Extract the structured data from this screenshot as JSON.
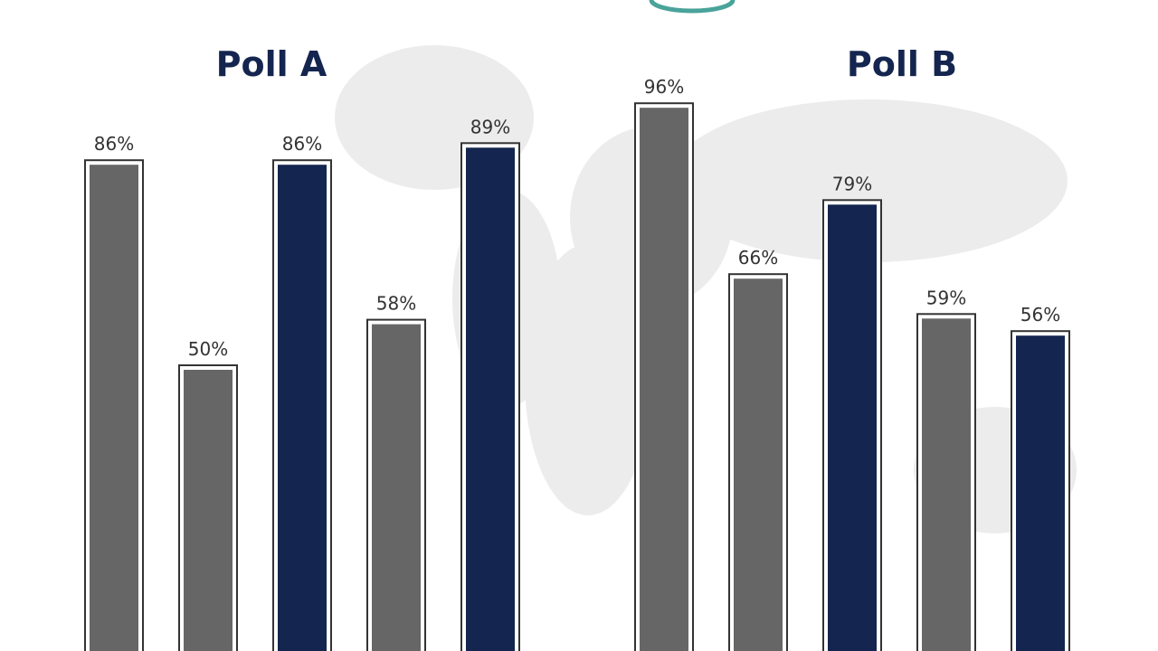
{
  "chart_data": [
    {
      "type": "bar",
      "title": "Poll A",
      "values": [
        86,
        50,
        86,
        58,
        89
      ],
      "value_labels": [
        "86%",
        "50%",
        "86%",
        "58%",
        "89%"
      ],
      "colors": [
        "#666666",
        "#666666",
        "#14254f",
        "#666666",
        "#14254f"
      ]
    },
    {
      "type": "bar",
      "title": "Poll B",
      "values": [
        96,
        66,
        79,
        59,
        56
      ],
      "value_labels": [
        "96%",
        "66%",
        "79%",
        "59%",
        "56%"
      ],
      "colors": [
        "#666666",
        "#666666",
        "#14254f",
        "#666666",
        "#14254f"
      ]
    }
  ]
}
